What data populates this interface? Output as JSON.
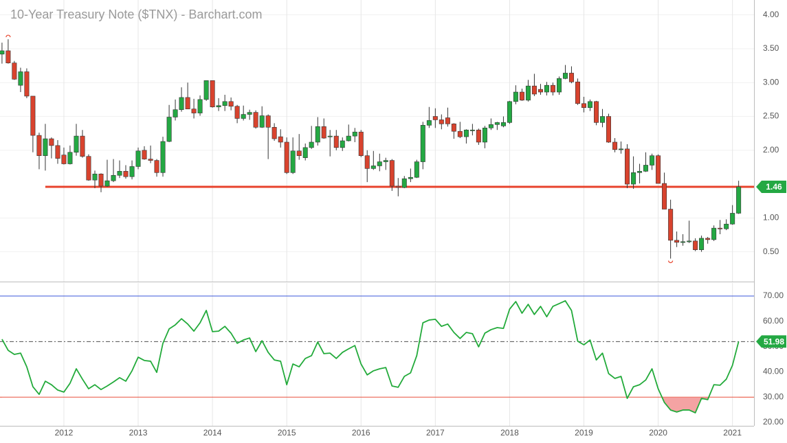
{
  "chart_data": [
    {
      "type": "candlestick",
      "title": "10-Year Treasury Note ($TNX) - Barchart.com",
      "x": [
        2011.167,
        2011.25,
        2011.333,
        2011.417,
        2011.5,
        2011.583,
        2011.667,
        2011.75,
        2011.833,
        2011.917,
        2012,
        2012.083,
        2012.167,
        2012.25,
        2012.333,
        2012.417,
        2012.5,
        2012.583,
        2012.667,
        2012.75,
        2012.833,
        2012.917,
        2013,
        2013.083,
        2013.167,
        2013.25,
        2013.333,
        2013.417,
        2013.5,
        2013.583,
        2013.667,
        2013.75,
        2013.833,
        2013.917,
        2014,
        2014.083,
        2014.167,
        2014.25,
        2014.333,
        2014.417,
        2014.5,
        2014.583,
        2014.667,
        2014.75,
        2014.833,
        2014.917,
        2015,
        2015.083,
        2015.167,
        2015.25,
        2015.333,
        2015.417,
        2015.5,
        2015.583,
        2015.667,
        2015.75,
        2015.833,
        2015.917,
        2016,
        2016.083,
        2016.167,
        2016.25,
        2016.333,
        2016.417,
        2016.5,
        2016.583,
        2016.667,
        2016.75,
        2016.833,
        2016.917,
        2017,
        2017.083,
        2017.167,
        2017.25,
        2017.333,
        2017.417,
        2017.5,
        2017.583,
        2017.667,
        2017.75,
        2017.833,
        2017.917,
        2018,
        2018.083,
        2018.167,
        2018.25,
        2018.333,
        2018.417,
        2018.5,
        2018.583,
        2018.667,
        2018.75,
        2018.833,
        2018.917,
        2019,
        2019.083,
        2019.167,
        2019.25,
        2019.333,
        2019.417,
        2019.5,
        2019.583,
        2019.667,
        2019.75,
        2019.833,
        2019.917,
        2020,
        2020.083,
        2020.167,
        2020.25,
        2020.333,
        2020.417,
        2020.5,
        2020.583,
        2020.667,
        2020.75,
        2020.833,
        2020.917,
        2021,
        2021.083
      ],
      "open": [
        3.42,
        3.47,
        3.29,
        2.96,
        3.16,
        2.8,
        2.22,
        1.92,
        2.17,
        2.07,
        1.93,
        1.8,
        1.97,
        2.21,
        1.91,
        1.56,
        1.65,
        1.47,
        1.55,
        1.63,
        1.69,
        1.61,
        1.76,
        2.0,
        1.87,
        1.85,
        1.67,
        2.13,
        2.49,
        2.6,
        2.78,
        2.61,
        2.55,
        2.75,
        3.03,
        2.64,
        2.66,
        2.72,
        2.65,
        2.47,
        2.53,
        2.56,
        2.34,
        2.51,
        2.34,
        2.2,
        2.12,
        1.67,
        1.99,
        1.89,
        2.04,
        2.12,
        2.35,
        2.2,
        2.21,
        2.04,
        2.14,
        2.21,
        2.27,
        1.92,
        1.73,
        1.77,
        1.83,
        1.85,
        1.47,
        1.45,
        1.58,
        1.6,
        1.83,
        2.37,
        2.5,
        2.45,
        2.48,
        2.39,
        2.28,
        2.2,
        2.29,
        2.3,
        2.12,
        2.33,
        2.38,
        2.36,
        2.41,
        2.72,
        2.86,
        2.74,
        2.95,
        2.9,
        2.86,
        2.96,
        2.86,
        3.06,
        3.14,
        3.01,
        2.69,
        2.63,
        2.72,
        2.41,
        2.5,
        2.12,
        2.01,
        2.02,
        1.5,
        1.67,
        1.69,
        1.78,
        1.92,
        1.51,
        1.13,
        0.67,
        0.64,
        0.65,
        0.66,
        0.53,
        0.7,
        0.68,
        0.85,
        0.84,
        0.91,
        1.07
      ],
      "high": [
        3.59,
        3.64,
        3.32,
        3.22,
        3.21,
        2.8,
        2.26,
        2.39,
        2.19,
        2.15,
        2.04,
        2.07,
        2.39,
        2.3,
        1.94,
        1.7,
        1.66,
        1.86,
        1.87,
        1.85,
        1.78,
        1.85,
        2.04,
        2.06,
        2.07,
        1.87,
        2.2,
        2.67,
        2.75,
        2.93,
        3.0,
        2.76,
        2.81,
        3.03,
        3.03,
        2.77,
        2.82,
        2.78,
        2.67,
        2.66,
        2.6,
        2.59,
        2.65,
        2.53,
        2.4,
        2.31,
        2.19,
        2.19,
        2.24,
        2.1,
        2.36,
        2.49,
        2.47,
        2.3,
        2.3,
        2.19,
        2.38,
        2.33,
        2.3,
        2.0,
        1.99,
        1.95,
        1.89,
        1.87,
        1.59,
        1.62,
        1.73,
        1.86,
        2.42,
        2.64,
        2.62,
        2.53,
        2.63,
        2.4,
        2.42,
        2.31,
        2.39,
        2.32,
        2.36,
        2.47,
        2.42,
        2.5,
        2.73,
        2.96,
        2.91,
        3.04,
        3.13,
        2.98,
        3.01,
        3.0,
        3.09,
        3.26,
        3.24,
        3.06,
        2.79,
        2.75,
        2.73,
        2.61,
        2.54,
        2.18,
        2.13,
        2.09,
        1.91,
        1.8,
        1.97,
        1.95,
        1.94,
        1.67,
        1.27,
        0.8,
        0.76,
        0.96,
        0.7,
        0.74,
        0.72,
        0.89,
        0.97,
        0.98,
        1.19,
        1.55
      ],
      "low": [
        3.28,
        3.28,
        3.04,
        2.86,
        2.77,
        1.97,
        1.72,
        1.7,
        1.88,
        1.8,
        1.79,
        1.79,
        1.92,
        1.89,
        1.55,
        1.44,
        1.38,
        1.46,
        1.53,
        1.59,
        1.58,
        1.57,
        1.72,
        1.86,
        1.81,
        1.61,
        1.61,
        2.12,
        2.44,
        2.57,
        2.61,
        2.47,
        2.51,
        2.73,
        2.63,
        2.58,
        2.58,
        2.59,
        2.4,
        2.44,
        2.45,
        2.32,
        2.33,
        1.87,
        2.14,
        2.04,
        1.65,
        1.65,
        1.86,
        1.85,
        2.02,
        2.07,
        2.17,
        1.91,
        2.0,
        1.99,
        2.13,
        2.12,
        1.9,
        1.53,
        1.71,
        1.69,
        1.71,
        1.4,
        1.32,
        1.44,
        1.53,
        1.59,
        1.72,
        2.33,
        2.33,
        2.31,
        2.35,
        2.17,
        2.18,
        2.1,
        2.22,
        2.08,
        2.03,
        2.3,
        2.3,
        2.34,
        2.39,
        2.68,
        2.73,
        2.72,
        2.8,
        2.82,
        2.81,
        2.81,
        2.82,
        3.05,
        2.99,
        2.67,
        2.56,
        2.58,
        2.37,
        2.34,
        2.11,
        1.97,
        1.95,
        1.44,
        1.43,
        1.51,
        1.68,
        1.71,
        1.51,
        1.13,
        0.4,
        0.57,
        0.59,
        0.63,
        0.51,
        0.5,
        0.62,
        0.66,
        0.76,
        0.82,
        0.9,
        1.06
      ],
      "close": [
        3.47,
        3.29,
        3.05,
        3.16,
        2.8,
        2.22,
        1.92,
        2.17,
        2.07,
        1.88,
        1.8,
        1.97,
        2.21,
        1.91,
        1.56,
        1.65,
        1.47,
        1.55,
        1.63,
        1.69,
        1.61,
        1.76,
        1.99,
        1.87,
        1.85,
        1.67,
        2.13,
        2.49,
        2.6,
        2.78,
        2.61,
        2.55,
        2.75,
        3.03,
        2.64,
        2.66,
        2.72,
        2.65,
        2.47,
        2.53,
        2.56,
        2.34,
        2.51,
        2.34,
        2.17,
        2.12,
        1.67,
        1.99,
        1.92,
        2.04,
        2.12,
        2.35,
        2.18,
        2.21,
        2.04,
        2.14,
        2.21,
        2.27,
        1.92,
        1.73,
        1.77,
        1.83,
        1.85,
        1.47,
        1.45,
        1.58,
        1.6,
        1.83,
        2.37,
        2.44,
        2.45,
        2.39,
        2.39,
        2.28,
        2.2,
        2.3,
        2.3,
        2.12,
        2.33,
        2.38,
        2.41,
        2.41,
        2.72,
        2.86,
        2.74,
        2.95,
        2.83,
        2.86,
        2.96,
        2.86,
        3.06,
        3.14,
        3.01,
        2.69,
        2.63,
        2.72,
        2.41,
        2.5,
        2.12,
        2.01,
        2.02,
        1.5,
        1.67,
        1.69,
        1.78,
        1.92,
        1.51,
        1.13,
        0.67,
        0.64,
        0.65,
        0.66,
        0.53,
        0.7,
        0.68,
        0.85,
        0.84,
        0.91,
        1.07,
        1.46
      ],
      "up_color": "#24a843",
      "down_color": "#d8432e",
      "marker_color": "#e8432c",
      "hline": {
        "value": 1.46,
        "x_start": 2011.75,
        "color": "#e8432c"
      },
      "badge_color": "#24a843",
      "xlim": [
        2011.14,
        2021.29
      ],
      "ylim": [
        0.06,
        4.22
      ],
      "yticks": [
        {
          "value": 4,
          "label": "4.00"
        },
        {
          "value": 3.5,
          "label": "3.50"
        },
        {
          "value": 3,
          "label": "3.00"
        },
        {
          "value": 2.5,
          "label": "2.50"
        },
        {
          "value": 2,
          "label": "2.00"
        },
        {
          "value": 1,
          "label": "1.00"
        },
        {
          "value": 0.5,
          "label": "0.50"
        }
      ],
      "grid": true
    },
    {
      "type": "line",
      "x": [
        2011.167,
        2011.25,
        2011.333,
        2011.417,
        2011.5,
        2011.583,
        2011.667,
        2011.75,
        2011.833,
        2011.917,
        2012,
        2012.083,
        2012.167,
        2012.25,
        2012.333,
        2012.417,
        2012.5,
        2012.583,
        2012.667,
        2012.75,
        2012.833,
        2012.917,
        2013,
        2013.083,
        2013.167,
        2013.25,
        2013.333,
        2013.417,
        2013.5,
        2013.583,
        2013.667,
        2013.75,
        2013.833,
        2013.917,
        2014,
        2014.083,
        2014.167,
        2014.25,
        2014.333,
        2014.417,
        2014.5,
        2014.583,
        2014.667,
        2014.75,
        2014.833,
        2014.917,
        2015,
        2015.083,
        2015.167,
        2015.25,
        2015.333,
        2015.417,
        2015.5,
        2015.583,
        2015.667,
        2015.75,
        2015.833,
        2015.917,
        2016,
        2016.083,
        2016.167,
        2016.25,
        2016.333,
        2016.417,
        2016.5,
        2016.583,
        2016.667,
        2016.75,
        2016.833,
        2016.917,
        2017,
        2017.083,
        2017.167,
        2017.25,
        2017.333,
        2017.417,
        2017.5,
        2017.583,
        2017.667,
        2017.75,
        2017.833,
        2017.917,
        2018,
        2018.083,
        2018.167,
        2018.25,
        2018.333,
        2018.417,
        2018.5,
        2018.583,
        2018.667,
        2018.75,
        2018.833,
        2018.917,
        2019,
        2019.083,
        2019.167,
        2019.25,
        2019.333,
        2019.417,
        2019.5,
        2019.583,
        2019.667,
        2019.75,
        2019.833,
        2019.917,
        2020,
        2020.083,
        2020.167,
        2020.25,
        2020.333,
        2020.417,
        2020.5,
        2020.583,
        2020.667,
        2020.75,
        2020.833,
        2020.917,
        2021,
        2021.083
      ],
      "values": [
        52.9,
        48.5,
        46.9,
        47.4,
        42.0,
        34.1,
        31.1,
        36.3,
        34.9,
        32.8,
        32.0,
        35.5,
        41.2,
        37.1,
        33.3,
        34.9,
        33.0,
        34.4,
        36.0,
        37.7,
        36.3,
        40.4,
        45.8,
        44.5,
        44.2,
        39.8,
        51.3,
        57.0,
        58.6,
        61.0,
        58.9,
        56.1,
        59.4,
        64.3,
        55.9,
        56.1,
        58.0,
        55.3,
        51.3,
        52.6,
        53.4,
        48.0,
        52.3,
        47.7,
        44.7,
        44.2,
        34.9,
        43.1,
        42.0,
        45.3,
        46.4,
        51.8,
        47.2,
        47.4,
        45.3,
        47.7,
        49.1,
        50.4,
        43.1,
        38.8,
        40.4,
        41.2,
        41.7,
        34.4,
        33.9,
        38.2,
        39.6,
        46.4,
        59.4,
        60.5,
        60.8,
        58.0,
        58.9,
        55.6,
        53.2,
        55.6,
        55.1,
        49.9,
        55.3,
        56.7,
        57.5,
        57.2,
        64.8,
        67.8,
        63.2,
        66.7,
        62.7,
        65.9,
        61.8,
        65.9,
        67.0,
        68.1,
        64.3,
        52.1,
        50.7,
        52.6,
        44.7,
        47.4,
        39.3,
        37.4,
        38.2,
        29.5,
        34.1,
        34.9,
        36.8,
        41.2,
        33.3,
        27.9,
        24.9,
        24.1,
        24.9,
        24.9,
        23.8,
        29.5,
        29.0,
        34.9,
        34.7,
        37.1,
        42.6,
        51.98
      ],
      "color": "#22aa3a",
      "oversold_fill": "#f4a3a3",
      "badge_color": "#24a843",
      "ref_lines": [
        {
          "value": 70,
          "color": "#3a55d8"
        },
        {
          "value": 30,
          "color": "#e8432c"
        }
      ],
      "xlim": [
        2011.14,
        2021.29
      ],
      "ylim": [
        18.64,
        75.16
      ],
      "yticks": [
        {
          "value": 70,
          "label": "70.00"
        },
        {
          "value": 60,
          "label": "60.00"
        },
        {
          "value": 50,
          "label": "50.00"
        },
        {
          "value": 40,
          "label": "40.00"
        },
        {
          "value": 30,
          "label": "30.00"
        },
        {
          "value": 20,
          "label": "20.00"
        }
      ],
      "xticks": [
        2012,
        2013,
        2014,
        2015,
        2016,
        2017,
        2018,
        2019,
        2020,
        2021
      ]
    }
  ]
}
